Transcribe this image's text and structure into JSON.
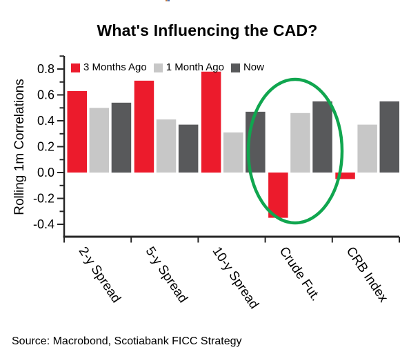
{
  "title": "What's Influencing the CAD?",
  "source": "Source: Macrobond, Scotiabank FICC Strategy",
  "top_artifact": {
    "colors": [
      "#c77a3a",
      "#8a8a9a",
      "#4a6fb5"
    ]
  },
  "chart_data": {
    "type": "bar",
    "title": "What's Influencing the CAD?",
    "ylabel": "Rolling 1m Correlations",
    "xlabel": "",
    "categories": [
      "2-y Spread",
      "5-y Spread",
      "10-y Spread",
      "Crude Fut.",
      "CRB Index"
    ],
    "series": [
      {
        "name": "3 Months Ago",
        "color": "#EC1B2C",
        "values": [
          0.63,
          0.71,
          0.78,
          -0.35,
          -0.05
        ]
      },
      {
        "name": "1 Month Ago",
        "color": "#C7C7C7",
        "values": [
          0.5,
          0.41,
          0.31,
          0.46,
          0.37
        ]
      },
      {
        "name": "Now",
        "color": "#58595B",
        "values": [
          0.54,
          0.37,
          0.47,
          0.55,
          0.55
        ]
      }
    ],
    "ylim": [
      -0.5,
      0.9
    ],
    "y_major_ticks": [
      0.8,
      0.6,
      0.4,
      0.2,
      0.0,
      -0.2,
      -0.4
    ],
    "y_minor_step": 0.1,
    "grid": false,
    "legend_position": "top-left-inside",
    "axis_color": "#262626",
    "text_color": "#000000",
    "annotations": [
      {
        "type": "ellipse",
        "around": "Crude Fut.",
        "color": "#10A64F",
        "meaning": "highlight of crude futures correlation group"
      }
    ]
  }
}
